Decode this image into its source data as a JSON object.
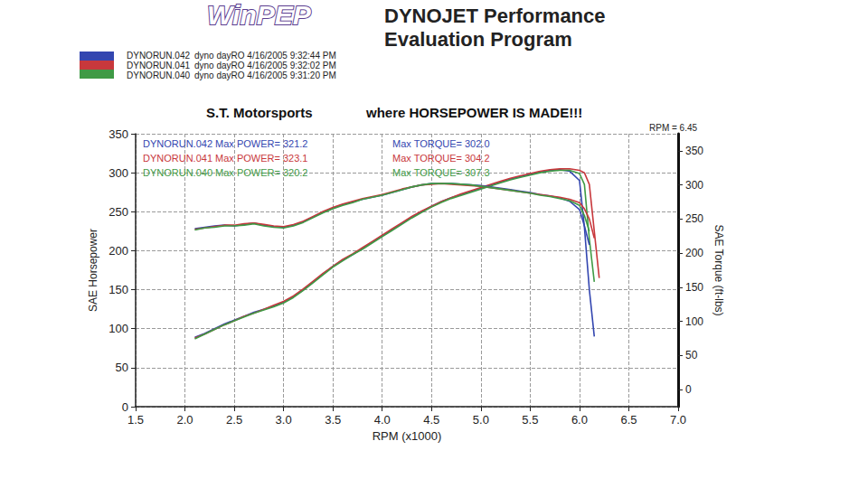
{
  "chart_data": {
    "type": "line",
    "logo": "WinPEP",
    "header": "DYNOJET Performance Evaluation Program",
    "title": "S.T. Motorsports",
    "subtitle": "where HORSEPOWER IS MADE!!!",
    "runs": [
      {
        "name": "DYNORUN.042",
        "note": "dyno dayRO 4/16/2005 9:32:44 PM",
        "color": "#3346b0"
      },
      {
        "name": "DYNORUN.041",
        "note": "dyno dayRO 4/16/2005 9:32:02 PM",
        "color": "#c8383c"
      },
      {
        "name": "DYNORUN.040",
        "note": "dyno dayRO 4/16/2005 9:31:20 PM",
        "color": "#3f9a45"
      }
    ],
    "max_labels": [
      {
        "text": "DYNORUN.042 Max POWER= 321.2",
        "color": "#3346b0"
      },
      {
        "text": "Max TORQUE= 302.0",
        "color": "#3346b0"
      },
      {
        "text": "DYNORUN.041 Max POWER= 323.1",
        "color": "#c8383c"
      },
      {
        "text": "Max TORQUE= 304.2",
        "color": "#c8383c"
      },
      {
        "text": "DYNORUN.040 Max POWER= 320.2",
        "color": "#3f9a45"
      },
      {
        "text": "Max TORQUE= 307.3",
        "color": "#3f9a45"
      }
    ],
    "annotations": [
      "RPM = 6.45"
    ],
    "xlabel": "RPM (x1000)",
    "ylabel": "SAE Horsepower",
    "y2label": "SAE Torque (ft-lbs)",
    "xlim": [
      1.5,
      7.0
    ],
    "xticks": [
      1.5,
      {
        "value": 2,
        "label": "2.0"
      },
      2.5,
      {
        "value": 3,
        "label": "3.0"
      },
      3.5,
      {
        "value": 4,
        "label": "4.0"
      },
      4.5,
      {
        "value": 5,
        "label": "5.0"
      },
      5.5,
      {
        "value": 6,
        "label": "6.0"
      },
      6.5,
      {
        "value": 7,
        "label": "7.0"
      }
    ],
    "ylim": [
      0,
      350
    ],
    "yticks": [
      0,
      50,
      100,
      150,
      200,
      250,
      300,
      350
    ],
    "y2lim": [
      -25,
      375
    ],
    "y2ticks": [
      0,
      50,
      100,
      150,
      200,
      250,
      300,
      350
    ],
    "grid": true,
    "x": [
      2.1,
      2.2,
      2.3,
      2.4,
      2.5,
      2.6,
      2.7,
      2.8,
      2.9,
      3.0,
      3.1,
      3.2,
      3.3,
      3.4,
      3.5,
      3.6,
      3.7,
      3.8,
      3.9,
      4.0,
      4.1,
      4.2,
      4.3,
      4.4,
      4.5,
      4.6,
      4.7,
      4.8,
      4.9,
      5.0,
      5.1,
      5.2,
      5.3,
      5.4,
      5.5,
      5.6,
      5.7,
      5.8,
      5.9,
      6.0,
      6.05,
      6.1,
      6.15,
      6.2
    ],
    "series": [
      {
        "name": "DYNORUN.042",
        "color": "#3346b0",
        "axis": "y",
        "values": [
          89,
          94,
          100,
          106,
          111,
          116,
          121,
          125,
          129,
          134,
          141,
          150,
          160,
          170,
          180,
          188,
          195,
          203,
          211,
          219,
          227,
          235,
          243,
          250,
          257,
          263,
          268,
          272,
          276,
          280,
          284,
          288,
          292,
          295,
          298,
          301,
          303,
          304,
          302,
          290,
          230,
          150,
          90,
          null
        ]
      },
      {
        "name": "DYNORUN.041",
        "color": "#c8383c",
        "axis": "y",
        "values": [
          88,
          93,
          99,
          105,
          110,
          116,
          120,
          125,
          130,
          135,
          142,
          151,
          161,
          171,
          180,
          189,
          196,
          204,
          212,
          220,
          228,
          236,
          244,
          251,
          257,
          263,
          268,
          273,
          277,
          281,
          285,
          289,
          293,
          296,
          299,
          302,
          304,
          305,
          305,
          303,
          300,
          285,
          225,
          165
        ]
      },
      {
        "name": "DYNORUN.040",
        "color": "#3f9a45",
        "axis": "y",
        "values": [
          87,
          93,
          99,
          105,
          110,
          115,
          120,
          124,
          128,
          133,
          140,
          149,
          159,
          169,
          179,
          187,
          195,
          202,
          210,
          218,
          226,
          234,
          242,
          249,
          256,
          262,
          267,
          271,
          275,
          279,
          283,
          287,
          291,
          294,
          297,
          300,
          302,
          303,
          303,
          299,
          285,
          215,
          160,
          null
        ]
      },
      {
        "name": "DYNORUN.042",
        "color": "#3346b0",
        "axis": "y2",
        "values": [
          236,
          238,
          240,
          241,
          240,
          242,
          244,
          241,
          239,
          238,
          241,
          246,
          253,
          260,
          266,
          271,
          275,
          279,
          282,
          285,
          289,
          293,
          297,
          300,
          302,
          302,
          302,
          301,
          300,
          299,
          297,
          295,
          293,
          291,
          289,
          286,
          284,
          281,
          276,
          264,
          240,
          212,
          null,
          null
        ]
      },
      {
        "name": "DYNORUN.041",
        "color": "#c8383c",
        "axis": "y2",
        "values": [
          235,
          237,
          239,
          241,
          241,
          243,
          244,
          242,
          240,
          239,
          242,
          247,
          254,
          261,
          267,
          272,
          276,
          280,
          283,
          286,
          290,
          294,
          297,
          300,
          301,
          302,
          301,
          300,
          299,
          298,
          296,
          294,
          292,
          290,
          288,
          286,
          284,
          282,
          279,
          274,
          265,
          250,
          222,
          null
        ]
      },
      {
        "name": "DYNORUN.040",
        "color": "#3f9a45",
        "axis": "y2",
        "values": [
          234,
          237,
          238,
          240,
          240,
          241,
          243,
          240,
          238,
          237,
          240,
          245,
          252,
          259,
          265,
          270,
          274,
          279,
          282,
          285,
          289,
          293,
          297,
          300,
          302,
          302,
          302,
          301,
          300,
          298,
          296,
          294,
          292,
          290,
          288,
          285,
          283,
          280,
          277,
          270,
          255,
          232,
          null,
          null
        ]
      }
    ]
  }
}
